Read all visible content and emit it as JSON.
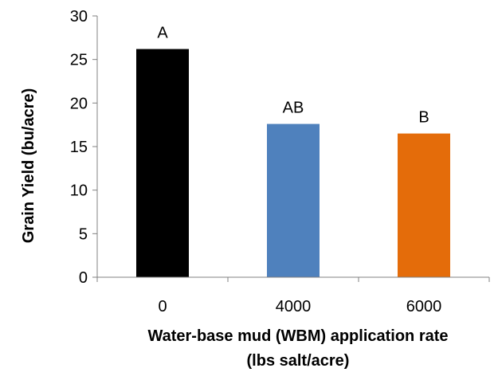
{
  "chart_data": {
    "type": "bar",
    "categories": [
      "0",
      "4000",
      "6000"
    ],
    "values": [
      26.2,
      17.6,
      16.5
    ],
    "bar_labels": [
      "A",
      "AB",
      "B"
    ],
    "colors": [
      "#000000",
      "#4F81BD",
      "#E46C0A"
    ],
    "xlabel": "Water-base mud (WBM) application rate",
    "xlabel_line2": "(lbs salt/acre)",
    "ylabel": "Grain Yield (bu/acre)",
    "ylim": [
      0,
      30
    ],
    "yticks": [
      0,
      5,
      10,
      15,
      20,
      25,
      30
    ],
    "grid": false,
    "legend": "none"
  }
}
